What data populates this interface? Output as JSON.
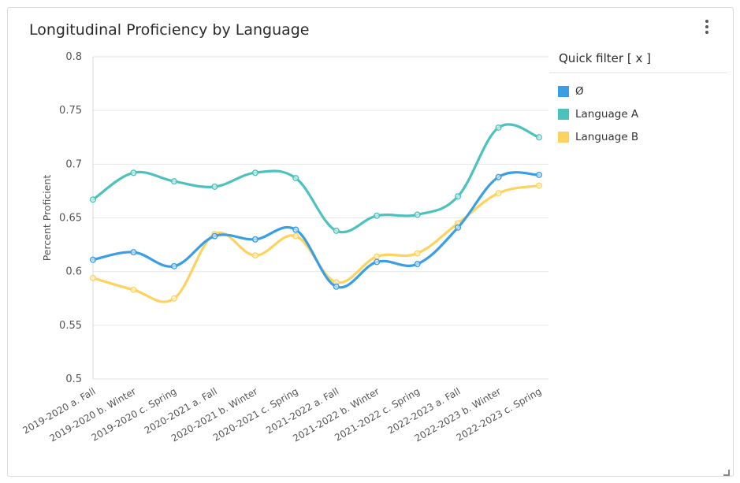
{
  "widget": {
    "title": "Longitudinal Proficiency by Language",
    "quick_filter_label": "Quick filter [ x ]",
    "menu_icon": "kebab-vertical-icon"
  },
  "colors": {
    "series_blank": "#3a9ee4",
    "series_a": "#4cc2bd",
    "series_b": "#fdd25e",
    "grid": "#e6e6e6",
    "axis_text": "#555555"
  },
  "chart_data": {
    "type": "line",
    "title": "Longitudinal Proficiency by Language",
    "xlabel": "",
    "ylabel": "Percent Proficient",
    "ylim": [
      0.5,
      0.8
    ],
    "yticks": [
      0.5,
      0.55,
      0.6,
      0.65,
      0.7,
      0.75,
      0.8
    ],
    "ytick_labels": [
      "0.5",
      "0.55",
      "0.6",
      "0.65",
      "0.7",
      "0.75",
      "0.8"
    ],
    "grid": true,
    "legend_position": "right",
    "categories": [
      "2019-2020 a. Fall",
      "2019-2020 b. Winter",
      "2019-2020 c. Spring",
      "2020-2021 a. Fall",
      "2020-2021 b. Winter",
      "2020-2021 c. Spring",
      "2021-2022 a. Fall",
      "2021-2022 b. Winter",
      "2021-2022 c. Spring",
      "2022-2023 a. Fall",
      "2022-2023 b. Winter",
      "2022-2023 c. Spring"
    ],
    "series": [
      {
        "name": "Ø",
        "color": "#3a9ee4",
        "values": [
          0.611,
          0.618,
          0.605,
          0.633,
          0.63,
          0.639,
          0.586,
          0.609,
          0.607,
          0.641,
          0.688,
          0.69
        ]
      },
      {
        "name": "Language A",
        "color": "#4cc2bd",
        "values": [
          0.667,
          0.692,
          0.684,
          0.679,
          0.692,
          0.687,
          0.638,
          0.652,
          0.653,
          0.67,
          0.734,
          0.725
        ]
      },
      {
        "name": "Language B",
        "color": "#fdd25e",
        "values": [
          0.594,
          0.583,
          0.575,
          0.635,
          0.615,
          0.633,
          0.59,
          0.614,
          0.617,
          0.645,
          0.673,
          0.68
        ]
      }
    ]
  }
}
